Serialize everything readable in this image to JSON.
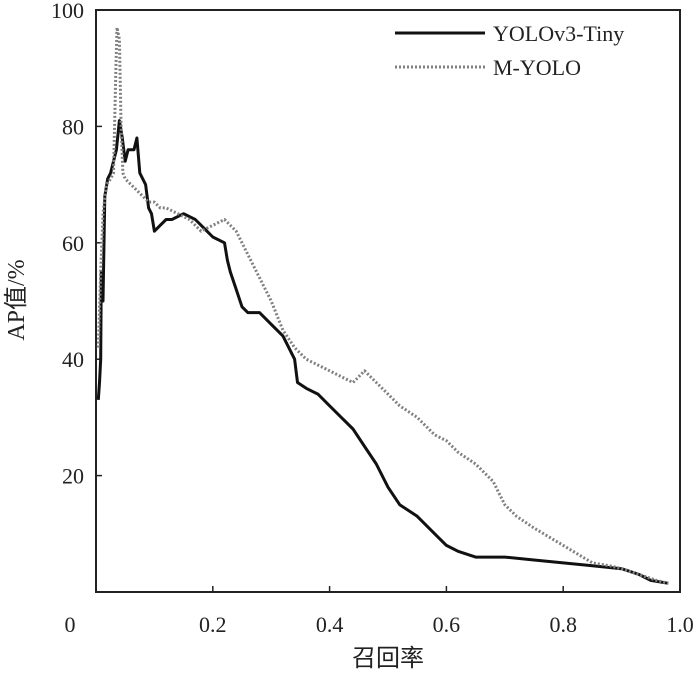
{
  "chart_data": {
    "type": "line",
    "xlabel": "召回率",
    "ylabel": "AP值/%",
    "xlim": [
      0,
      1.0
    ],
    "ylim": [
      0,
      100
    ],
    "x_ticks": [
      {
        "value": 0,
        "label": "0"
      },
      {
        "value": 0.2,
        "label": "0.2"
      },
      {
        "value": 0.4,
        "label": "0.4"
      },
      {
        "value": 0.6,
        "label": "0.6"
      },
      {
        "value": 0.8,
        "label": "0.8"
      },
      {
        "value": 1.0,
        "label": "1.0"
      }
    ],
    "y_ticks": [
      {
        "value": 20,
        "label": "20"
      },
      {
        "value": 40,
        "label": "40"
      },
      {
        "value": 60,
        "label": "60"
      },
      {
        "value": 80,
        "label": "80"
      },
      {
        "value": 100,
        "label": "100"
      }
    ],
    "grid": false,
    "legend_position": "top-right",
    "series": [
      {
        "name": "YOLOv3-Tiny",
        "style": "solid",
        "color": "#111111",
        "points": [
          [
            0.004,
            33
          ],
          [
            0.006,
            36
          ],
          [
            0.008,
            40
          ],
          [
            0.009,
            55
          ],
          [
            0.012,
            50
          ],
          [
            0.015,
            68
          ],
          [
            0.02,
            71
          ],
          [
            0.025,
            72
          ],
          [
            0.03,
            74
          ],
          [
            0.035,
            76
          ],
          [
            0.04,
            81
          ],
          [
            0.045,
            78
          ],
          [
            0.05,
            74
          ],
          [
            0.055,
            76
          ],
          [
            0.065,
            76
          ],
          [
            0.07,
            78
          ],
          [
            0.075,
            72
          ],
          [
            0.085,
            70
          ],
          [
            0.09,
            66
          ],
          [
            0.095,
            65
          ],
          [
            0.1,
            62
          ],
          [
            0.11,
            63
          ],
          [
            0.12,
            64
          ],
          [
            0.13,
            64
          ],
          [
            0.15,
            65
          ],
          [
            0.17,
            64
          ],
          [
            0.19,
            62
          ],
          [
            0.2,
            61
          ],
          [
            0.22,
            60
          ],
          [
            0.225,
            57
          ],
          [
            0.23,
            55
          ],
          [
            0.24,
            52
          ],
          [
            0.25,
            49
          ],
          [
            0.26,
            48
          ],
          [
            0.28,
            48
          ],
          [
            0.3,
            46
          ],
          [
            0.32,
            44
          ],
          [
            0.34,
            40
          ],
          [
            0.345,
            36
          ],
          [
            0.36,
            35
          ],
          [
            0.38,
            34
          ],
          [
            0.4,
            32
          ],
          [
            0.42,
            30
          ],
          [
            0.44,
            28
          ],
          [
            0.46,
            25
          ],
          [
            0.48,
            22
          ],
          [
            0.5,
            18
          ],
          [
            0.52,
            15
          ],
          [
            0.55,
            13
          ],
          [
            0.58,
            10
          ],
          [
            0.6,
            8
          ],
          [
            0.62,
            7
          ],
          [
            0.65,
            6
          ],
          [
            0.7,
            6
          ],
          [
            0.75,
            5.5
          ],
          [
            0.8,
            5
          ],
          [
            0.85,
            4.5
          ],
          [
            0.9,
            4
          ],
          [
            0.93,
            3
          ],
          [
            0.95,
            2
          ],
          [
            0.98,
            1.5
          ]
        ]
      },
      {
        "name": "M-YOLO",
        "style": "dotted",
        "color": "#808080",
        "points": [
          [
            0.004,
            42
          ],
          [
            0.008,
            55
          ],
          [
            0.012,
            65
          ],
          [
            0.018,
            70
          ],
          [
            0.025,
            71
          ],
          [
            0.03,
            72
          ],
          [
            0.034,
            90
          ],
          [
            0.036,
            97
          ],
          [
            0.04,
            95
          ],
          [
            0.043,
            80
          ],
          [
            0.046,
            72
          ],
          [
            0.05,
            71
          ],
          [
            0.06,
            70
          ],
          [
            0.07,
            69
          ],
          [
            0.08,
            68
          ],
          [
            0.09,
            67
          ],
          [
            0.1,
            67
          ],
          [
            0.11,
            66
          ],
          [
            0.12,
            66
          ],
          [
            0.14,
            65
          ],
          [
            0.16,
            64
          ],
          [
            0.18,
            62
          ],
          [
            0.2,
            63
          ],
          [
            0.22,
            64
          ],
          [
            0.24,
            62
          ],
          [
            0.26,
            58
          ],
          [
            0.28,
            54
          ],
          [
            0.3,
            50
          ],
          [
            0.32,
            45
          ],
          [
            0.34,
            42
          ],
          [
            0.36,
            40
          ],
          [
            0.38,
            39
          ],
          [
            0.4,
            38
          ],
          [
            0.42,
            37
          ],
          [
            0.44,
            36
          ],
          [
            0.46,
            38
          ],
          [
            0.48,
            36
          ],
          [
            0.5,
            34
          ],
          [
            0.52,
            32
          ],
          [
            0.55,
            30
          ],
          [
            0.58,
            27
          ],
          [
            0.6,
            26
          ],
          [
            0.62,
            24
          ],
          [
            0.65,
            22
          ],
          [
            0.68,
            19
          ],
          [
            0.7,
            15
          ],
          [
            0.72,
            13
          ],
          [
            0.75,
            11
          ],
          [
            0.8,
            8
          ],
          [
            0.85,
            5
          ],
          [
            0.88,
            4.5
          ],
          [
            0.9,
            4
          ],
          [
            0.93,
            3
          ],
          [
            0.96,
            2
          ],
          [
            0.98,
            1.5
          ]
        ]
      }
    ]
  }
}
